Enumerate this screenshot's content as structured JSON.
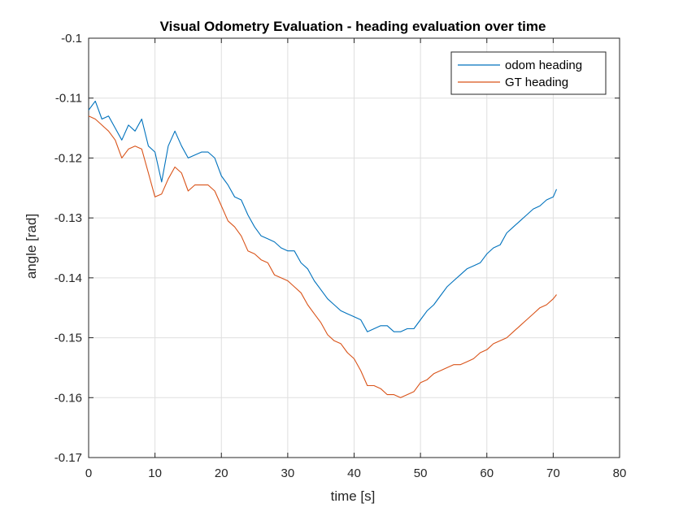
{
  "chart_data": {
    "type": "line",
    "title": "Visual Odometry Evaluation - heading evaluation over time",
    "xlabel": "time [s]",
    "ylabel": "angle [rad]",
    "xlim": [
      0,
      80
    ],
    "ylim": [
      -0.17,
      -0.1
    ],
    "xticks": [
      "0",
      "10",
      "20",
      "30",
      "40",
      "50",
      "60",
      "70",
      "80"
    ],
    "yticks": [
      "-0.1",
      "-0.11",
      "-0.12",
      "-0.13",
      "-0.14",
      "-0.15",
      "-0.16",
      "-0.17"
    ],
    "grid": true,
    "legend_position": "top-right",
    "x": [
      0,
      1,
      2,
      3,
      4,
      5,
      6,
      7,
      8,
      9,
      10,
      11,
      12,
      13,
      14,
      15,
      16,
      17,
      18,
      19,
      20,
      21,
      22,
      23,
      24,
      25,
      26,
      27,
      28,
      29,
      30,
      31,
      32,
      33,
      34,
      35,
      36,
      37,
      38,
      39,
      40,
      41,
      42,
      43,
      44,
      45,
      46,
      47,
      48,
      49,
      50,
      51,
      52,
      53,
      54,
      55,
      56,
      57,
      58,
      59,
      60,
      61,
      62,
      63,
      64,
      65,
      66,
      67,
      68,
      69,
      70,
      70.5
    ],
    "series": [
      {
        "name": "odom heading",
        "color": "#0072BD",
        "values": [
          -0.112,
          -0.1105,
          -0.1135,
          -0.113,
          -0.115,
          -0.117,
          -0.1145,
          -0.1155,
          -0.1135,
          -0.118,
          -0.119,
          -0.124,
          -0.118,
          -0.1155,
          -0.118,
          -0.12,
          -0.1195,
          -0.119,
          -0.119,
          -0.12,
          -0.123,
          -0.1245,
          -0.1265,
          -0.127,
          -0.1295,
          -0.1315,
          -0.133,
          -0.1335,
          -0.134,
          -0.135,
          -0.1355,
          -0.1355,
          -0.1375,
          -0.1385,
          -0.1405,
          -0.142,
          -0.1435,
          -0.1445,
          -0.1455,
          -0.146,
          -0.1465,
          -0.147,
          -0.149,
          -0.1485,
          -0.148,
          -0.148,
          -0.149,
          -0.149,
          -0.1485,
          -0.1485,
          -0.147,
          -0.1455,
          -0.1445,
          -0.143,
          -0.1415,
          -0.1405,
          -0.1395,
          -0.1385,
          -0.138,
          -0.1375,
          -0.136,
          -0.135,
          -0.1345,
          -0.1325,
          -0.1315,
          -0.1305,
          -0.1295,
          -0.1285,
          -0.128,
          -0.127,
          -0.1265,
          -0.1252
        ]
      },
      {
        "name": "GT heading",
        "color": "#D95319",
        "values": [
          -0.113,
          -0.1135,
          -0.1145,
          -0.1155,
          -0.117,
          -0.12,
          -0.1185,
          -0.118,
          -0.1185,
          -0.1225,
          -0.1265,
          -0.126,
          -0.1235,
          -0.1215,
          -0.1225,
          -0.1255,
          -0.1245,
          -0.1245,
          -0.1245,
          -0.1255,
          -0.128,
          -0.1305,
          -0.1315,
          -0.133,
          -0.1355,
          -0.136,
          -0.137,
          -0.1375,
          -0.1395,
          -0.14,
          -0.1405,
          -0.1415,
          -0.1425,
          -0.1445,
          -0.146,
          -0.1475,
          -0.1495,
          -0.1505,
          -0.151,
          -0.1525,
          -0.1535,
          -0.1555,
          -0.158,
          -0.158,
          -0.1585,
          -0.1595,
          -0.1595,
          -0.16,
          -0.1595,
          -0.159,
          -0.1575,
          -0.157,
          -0.156,
          -0.1555,
          -0.155,
          -0.1545,
          -0.1545,
          -0.154,
          -0.1535,
          -0.1525,
          -0.152,
          -0.151,
          -0.1505,
          -0.15,
          -0.149,
          -0.148,
          -0.147,
          -0.146,
          -0.145,
          -0.1445,
          -0.1435,
          -0.1428
        ]
      }
    ]
  }
}
